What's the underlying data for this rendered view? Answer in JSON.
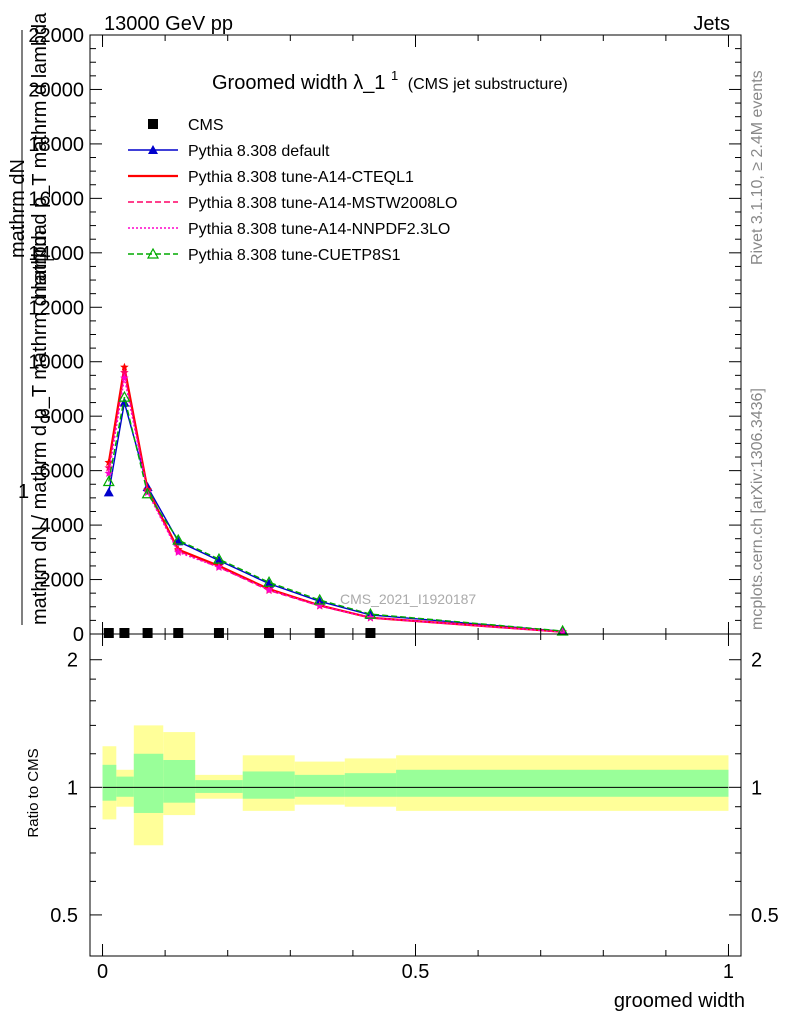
{
  "header": {
    "left": "13000 GeV pp",
    "right": "Jets"
  },
  "side": {
    "rivet": "Rivet 3.1.10, ≥ 2.4M events",
    "mcplots": "mcplots.cern.ch [arXiv:1306.3436]"
  },
  "chart_data": [
    {
      "type": "line",
      "title_main": "Groomed width",
      "title_lambda": "λ_1",
      "title_sup": "1",
      "title_sub": "(CMS jet substructure)",
      "watermark": "CMS_2021_I1920187",
      "ylabel_parts": {
        "one": "1",
        "num_top": "mathrm dN",
        "num_bottom": "mathrm d p_T mathrm d lambda",
        "num_sub": "T",
        "den": "mathrm dN / mathrm d p_T mathrm d lambda"
      },
      "xlim": [
        -0.02,
        1.02
      ],
      "ylim": [
        0,
        22000
      ],
      "yticks": [
        "0",
        "2000",
        "4000",
        "6000",
        "8000",
        "10000",
        "12000",
        "14000",
        "16000",
        "18000",
        "20000",
        "22000"
      ],
      "grid": false,
      "legend_position": "top-left",
      "series": [
        {
          "name": "CMS",
          "color": "#000000",
          "marker": "square",
          "x": [
            0.01,
            0.035,
            0.072,
            0.121,
            0.186,
            0.266,
            0.347,
            0.428
          ],
          "y": [
            0,
            0,
            0,
            0,
            0,
            0,
            0,
            0
          ]
        },
        {
          "name": "Pythia 8.308 default",
          "color": "#0000cc",
          "dash": "solid",
          "marker": "triangle-filled",
          "x": [
            0.01,
            0.035,
            0.072,
            0.121,
            0.186,
            0.266,
            0.347,
            0.428,
            0.735
          ],
          "y": [
            5200,
            8500,
            5400,
            3400,
            2700,
            1850,
            1200,
            700,
            100
          ]
        },
        {
          "name": "Pythia 8.308 tune-A14-CTEQL1",
          "color": "#ff0000",
          "dash": "solid",
          "marker": "star",
          "x": [
            0.01,
            0.035,
            0.072,
            0.121,
            0.186,
            0.266,
            0.347,
            0.428,
            0.735
          ],
          "y": [
            6300,
            9800,
            5300,
            3100,
            2500,
            1650,
            1050,
            600,
            80
          ]
        },
        {
          "name": "Pythia 8.308 tune-A14-MSTW2008LO",
          "color": "#ff0066",
          "dash": "dashed",
          "marker": "star",
          "x": [
            0.01,
            0.035,
            0.072,
            0.121,
            0.186,
            0.266,
            0.347,
            0.428,
            0.735
          ],
          "y": [
            6100,
            9600,
            5250,
            3050,
            2450,
            1600,
            1030,
            590,
            75
          ]
        },
        {
          "name": "Pythia 8.308 tune-A14-NNPDF2.3LO",
          "color": "#ff00cc",
          "dash": "dotted",
          "marker": "star",
          "x": [
            0.01,
            0.035,
            0.072,
            0.121,
            0.186,
            0.266,
            0.347,
            0.428,
            0.735
          ],
          "y": [
            5900,
            9400,
            5200,
            3000,
            2450,
            1620,
            1040,
            600,
            75
          ]
        },
        {
          "name": "Pythia 8.308 tune-CUETP8S1",
          "color": "#00aa00",
          "dash": "dashed",
          "marker": "triangle-open",
          "x": [
            0.01,
            0.035,
            0.072,
            0.121,
            0.186,
            0.266,
            0.347,
            0.428,
            0.735
          ],
          "y": [
            5600,
            8700,
            5150,
            3450,
            2750,
            1900,
            1250,
            730,
            110
          ]
        }
      ]
    },
    {
      "type": "area",
      "ylabel": "Ratio to CMS",
      "xlabel": "groomed width",
      "xlim": [
        -0.02,
        1.02
      ],
      "ylim": [
        0.4,
        2.3
      ],
      "log_y": true,
      "yticks": [
        0.5,
        1,
        2
      ],
      "ytick_labels": [
        "0.5",
        "1",
        "2"
      ],
      "xticks": [
        0,
        0.5,
        1
      ],
      "xtick_labels": [
        "0",
        "0.5",
        "1"
      ],
      "reference_line": 1,
      "bands": {
        "color_outer": "#ffff99",
        "color_inner": "#99ff99",
        "bins": [
          {
            "x0": 0.0,
            "x1": 0.022,
            "outer": [
              0.84,
              1.25
            ],
            "inner": [
              0.93,
              1.13
            ]
          },
          {
            "x0": 0.022,
            "x1": 0.05,
            "outer": [
              0.9,
              1.1
            ],
            "inner": [
              0.95,
              1.06
            ]
          },
          {
            "x0": 0.05,
            "x1": 0.097,
            "outer": [
              0.73,
              1.4
            ],
            "inner": [
              0.87,
              1.2
            ]
          },
          {
            "x0": 0.097,
            "x1": 0.148,
            "outer": [
              0.86,
              1.35
            ],
            "inner": [
              0.92,
              1.16
            ]
          },
          {
            "x0": 0.148,
            "x1": 0.224,
            "outer": [
              0.94,
              1.07
            ],
            "inner": [
              0.97,
              1.04
            ]
          },
          {
            "x0": 0.224,
            "x1": 0.307,
            "outer": [
              0.88,
              1.19
            ],
            "inner": [
              0.94,
              1.09
            ]
          },
          {
            "x0": 0.307,
            "x1": 0.387,
            "outer": [
              0.91,
              1.15
            ],
            "inner": [
              0.95,
              1.07
            ]
          },
          {
            "x0": 0.387,
            "x1": 0.469,
            "outer": [
              0.9,
              1.17
            ],
            "inner": [
              0.95,
              1.08
            ]
          },
          {
            "x0": 0.469,
            "x1": 1.0,
            "outer": [
              0.88,
              1.19
            ],
            "inner": [
              0.95,
              1.1
            ]
          }
        ]
      }
    }
  ]
}
